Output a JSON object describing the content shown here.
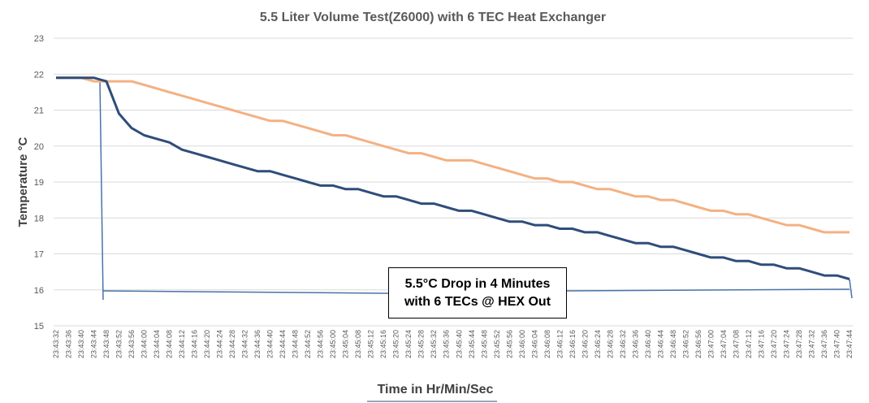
{
  "chart_data": {
    "type": "line",
    "title": "5.5 Liter Volume Test(Z6000) with 6 TEC Heat Exchanger",
    "xlabel": "Time in Hr/Min/Sec",
    "ylabel": "Temperature °C",
    "ylim": [
      15,
      23
    ],
    "yticks": [
      15,
      16,
      17,
      18,
      19,
      20,
      21,
      22,
      23
    ],
    "grid": true,
    "legend": "none",
    "x": [
      "23:43:32",
      "23:43:36",
      "23:43:40",
      "23:43:44",
      "23:43:48",
      "23:43:52",
      "23:43:56",
      "23:44:00",
      "23:44:04",
      "23:44:08",
      "23:44:12",
      "23:44:16",
      "23:44:20",
      "23:44:24",
      "23:44:28",
      "23:44:32",
      "23:44:36",
      "23:44:40",
      "23:44:44",
      "23:44:48",
      "23:44:52",
      "23:44:56",
      "23:45:00",
      "23:45:04",
      "23:45:08",
      "23:45:12",
      "23:45:16",
      "23:45:20",
      "23:45:24",
      "23:45:28",
      "23:45:32",
      "23:45:36",
      "23:45:40",
      "23:45:44",
      "23:45:48",
      "23:45:52",
      "23:45:56",
      "23:46:00",
      "23:46:04",
      "23:46:08",
      "23:46:12",
      "23:46:16",
      "23:46:20",
      "23:46:24",
      "23:46:28",
      "23:46:32",
      "23:46:36",
      "23:46:40",
      "23:46:44",
      "23:46:48",
      "23:46:52",
      "23:46:56",
      "23:47:00",
      "23:47:04",
      "23:47:08",
      "23:47:12",
      "23:47:16",
      "23:47:20",
      "23:47:24",
      "23:47:28",
      "23:47:32",
      "23:47:36",
      "23:47:40",
      "23:47:44"
    ],
    "series": [
      {
        "color": "#F4B183",
        "values": [
          21.9,
          21.9,
          21.9,
          21.8,
          21.8,
          21.8,
          21.8,
          21.7,
          21.6,
          21.5,
          21.4,
          21.3,
          21.2,
          21.1,
          21.0,
          20.9,
          20.8,
          20.7,
          20.7,
          20.6,
          20.5,
          20.4,
          20.3,
          20.3,
          20.2,
          20.1,
          20.0,
          19.9,
          19.8,
          19.8,
          19.7,
          19.6,
          19.6,
          19.6,
          19.5,
          19.4,
          19.3,
          19.2,
          19.1,
          19.1,
          19.0,
          19.0,
          18.9,
          18.8,
          18.8,
          18.7,
          18.6,
          18.6,
          18.5,
          18.5,
          18.4,
          18.3,
          18.2,
          18.2,
          18.1,
          18.1,
          18.0,
          17.9,
          17.8,
          17.8,
          17.7,
          17.6,
          17.6,
          17.6
        ]
      },
      {
        "color": "#2F4D7A",
        "values": [
          21.9,
          21.9,
          21.9,
          21.9,
          21.8,
          20.9,
          20.5,
          20.3,
          20.2,
          20.1,
          19.9,
          19.8,
          19.7,
          19.6,
          19.5,
          19.4,
          19.3,
          19.3,
          19.2,
          19.1,
          19.0,
          18.9,
          18.9,
          18.8,
          18.8,
          18.7,
          18.6,
          18.6,
          18.5,
          18.4,
          18.4,
          18.3,
          18.2,
          18.2,
          18.1,
          18.0,
          17.9,
          17.9,
          17.8,
          17.8,
          17.7,
          17.7,
          17.6,
          17.6,
          17.5,
          17.4,
          17.3,
          17.3,
          17.2,
          17.2,
          17.1,
          17.0,
          16.9,
          16.9,
          16.8,
          16.8,
          16.7,
          16.7,
          16.6,
          16.6,
          16.5,
          16.4,
          16.4,
          16.3
        ]
      }
    ],
    "annotation": {
      "line1": "5.5°C Drop in 4 Minutes",
      "line2": "with 6 TECs @ HEX Out"
    },
    "marker_color": "#4A73A8"
  }
}
